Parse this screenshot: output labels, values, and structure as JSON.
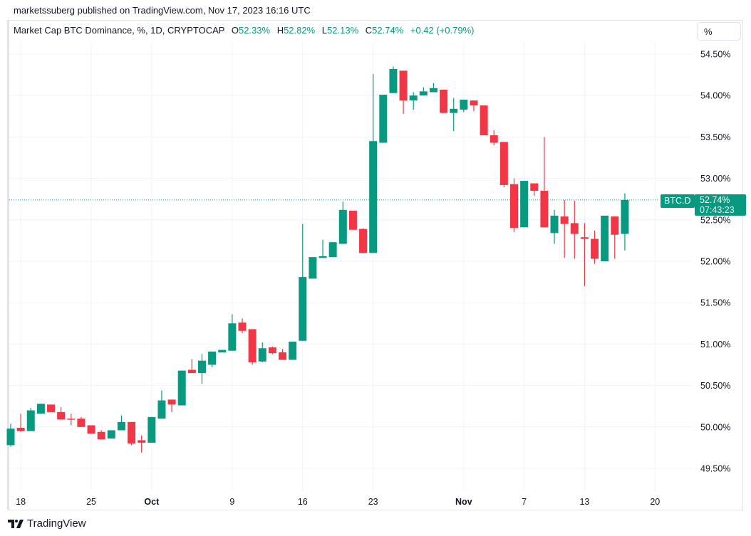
{
  "header": {
    "published": "marketssuberg published on TradingView.com, Nov 17, 2023 16:16 UTC"
  },
  "legend": {
    "symbol": "Market Cap BTC Dominance, %, 1D, CRYPTOCAP",
    "o_label": "O",
    "o": "52.33%",
    "h_label": "H",
    "h": "52.82%",
    "l_label": "L",
    "l": "52.13%",
    "c_label": "C",
    "c": "52.74%",
    "change": "+0.42 (+0.79%)"
  },
  "scale_button": "%",
  "last_price": {
    "symbol_tag": "BTC.D",
    "value": "52.74%",
    "countdown": "07:43:23"
  },
  "brand": "TradingView",
  "colors": {
    "up": "#089981",
    "down": "#f23645",
    "grid": "#f0f3fa"
  },
  "chart_data": {
    "type": "candlestick",
    "title": "Market Cap BTC Dominance, %, 1D, CRYPTOCAP",
    "ylim": [
      49.3,
      54.65
    ],
    "y_ticks": [
      "54.50%",
      "54.00%",
      "53.50%",
      "53.00%",
      "52.50%",
      "52.00%",
      "51.50%",
      "51.00%",
      "50.50%",
      "50.00%",
      "49.50%"
    ],
    "y_tick_values": [
      54.5,
      54.0,
      53.5,
      53.0,
      52.5,
      52.0,
      51.5,
      51.0,
      50.5,
      50.0,
      49.5
    ],
    "x_ticks": [
      {
        "label": "18",
        "date": "2023-09-18",
        "bold": false
      },
      {
        "label": "25",
        "date": "2023-09-25",
        "bold": false
      },
      {
        "label": "Oct",
        "date": "2023-10-01",
        "bold": true
      },
      {
        "label": "9",
        "date": "2023-10-09",
        "bold": false
      },
      {
        "label": "16",
        "date": "2023-10-16",
        "bold": false
      },
      {
        "label": "23",
        "date": "2023-10-23",
        "bold": false
      },
      {
        "label": "Nov",
        "date": "2023-11-01",
        "bold": true
      },
      {
        "label": "7",
        "date": "2023-11-07",
        "bold": false
      },
      {
        "label": "13",
        "date": "2023-11-13",
        "bold": false
      },
      {
        "label": "20",
        "date": "2023-11-20",
        "bold": false
      }
    ],
    "start_date": "2023-09-17",
    "x_end_date": "2023-11-25",
    "ohlc": [
      [
        49.78,
        50.04,
        49.76,
        49.98
      ],
      [
        49.99,
        50.16,
        49.94,
        49.95
      ],
      [
        49.95,
        50.23,
        49.95,
        50.2
      ],
      [
        50.16,
        50.28,
        50.16,
        50.28
      ],
      [
        50.27,
        50.27,
        50.18,
        50.18
      ],
      [
        50.18,
        50.24,
        50.09,
        50.09
      ],
      [
        50.1,
        50.16,
        50.02,
        50.09
      ],
      [
        50.1,
        50.12,
        50.0,
        50.0
      ],
      [
        50.02,
        50.02,
        49.92,
        49.92
      ],
      [
        49.94,
        49.96,
        49.85,
        49.85
      ],
      [
        49.86,
        49.96,
        49.86,
        49.96
      ],
      [
        49.96,
        50.14,
        49.96,
        50.06
      ],
      [
        50.06,
        50.06,
        49.78,
        49.8
      ],
      [
        49.84,
        49.9,
        49.69,
        49.81
      ],
      [
        49.81,
        50.12,
        49.81,
        50.12
      ],
      [
        50.1,
        50.44,
        50.1,
        50.32
      ],
      [
        50.33,
        50.33,
        50.18,
        50.27
      ],
      [
        50.26,
        50.68,
        50.26,
        50.68
      ],
      [
        50.69,
        50.82,
        50.65,
        50.65
      ],
      [
        50.65,
        50.88,
        50.52,
        50.8
      ],
      [
        50.75,
        50.91,
        50.72,
        50.91
      ],
      [
        50.9,
        50.93,
        50.9,
        50.93
      ],
      [
        50.92,
        51.36,
        50.92,
        51.25
      ],
      [
        51.26,
        51.31,
        51.13,
        51.16
      ],
      [
        51.18,
        51.18,
        50.75,
        50.78
      ],
      [
        50.79,
        51.02,
        50.78,
        50.95
      ],
      [
        50.96,
        50.97,
        50.88,
        50.89
      ],
      [
        50.9,
        50.94,
        50.81,
        50.81
      ],
      [
        50.81,
        51.03,
        50.81,
        51.03
      ],
      [
        51.04,
        52.45,
        51.04,
        51.81
      ],
      [
        51.79,
        52.05,
        51.79,
        52.05
      ],
      [
        52.04,
        52.26,
        52.04,
        52.06
      ],
      [
        52.05,
        52.23,
        52.05,
        52.23
      ],
      [
        52.21,
        52.72,
        52.21,
        52.62
      ],
      [
        52.61,
        52.61,
        52.38,
        52.38
      ],
      [
        52.39,
        52.4,
        52.1,
        52.1
      ],
      [
        52.1,
        54.26,
        52.1,
        53.45
      ],
      [
        53.43,
        54.01,
        53.43,
        54.01
      ],
      [
        54.03,
        54.35,
        54.03,
        54.32
      ],
      [
        54.3,
        54.3,
        53.78,
        53.94
      ],
      [
        53.94,
        54.04,
        53.83,
        54.0
      ],
      [
        54.0,
        54.1,
        54.0,
        54.05
      ],
      [
        54.04,
        54.15,
        54.04,
        54.09
      ],
      [
        54.07,
        54.07,
        53.79,
        53.79
      ],
      [
        53.79,
        53.97,
        53.57,
        53.84
      ],
      [
        53.83,
        53.95,
        53.8,
        53.95
      ],
      [
        53.94,
        53.94,
        53.81,
        53.88
      ],
      [
        53.88,
        53.88,
        53.52,
        53.52
      ],
      [
        53.52,
        53.58,
        53.4,
        53.43
      ],
      [
        53.44,
        53.44,
        52.89,
        52.92
      ],
      [
        52.93,
        53.0,
        52.35,
        52.4
      ],
      [
        52.41,
        52.97,
        52.41,
        52.97
      ],
      [
        52.94,
        52.94,
        52.79,
        52.85
      ],
      [
        52.85,
        53.5,
        52.41,
        52.41
      ],
      [
        52.34,
        52.62,
        52.21,
        52.55
      ],
      [
        52.54,
        52.74,
        52.04,
        52.45
      ],
      [
        52.46,
        52.73,
        52.03,
        52.33
      ],
      [
        52.29,
        52.46,
        51.7,
        52.27
      ],
      [
        52.27,
        52.37,
        51.97,
        52.03
      ],
      [
        52.0,
        52.55,
        52.0,
        52.55
      ],
      [
        52.54,
        52.54,
        52.03,
        52.32
      ],
      [
        52.33,
        52.82,
        52.13,
        52.74
      ]
    ],
    "last_value": 52.74,
    "grid": true
  }
}
